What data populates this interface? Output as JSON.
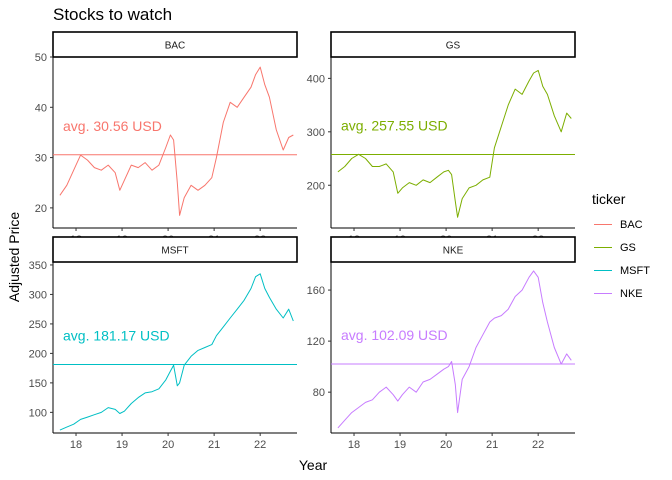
{
  "title": "Stocks to watch",
  "xlabel": "Year",
  "ylabel": "Adjusted Price",
  "legend": {
    "title": "ticker",
    "items": [
      {
        "label": "BAC",
        "color": "#F8766D"
      },
      {
        "label": "GS",
        "color": "#7CAE00"
      },
      {
        "label": "MSFT",
        "color": "#00BFC4"
      },
      {
        "label": "NKE",
        "color": "#C77CFF"
      }
    ]
  },
  "chart_data": {
    "type": "line",
    "facet_by": "ticker",
    "x_ticks": [
      "18",
      "19",
      "20",
      "21",
      "22"
    ],
    "grid": false,
    "legend_position": "right",
    "panels": [
      {
        "name": "BAC",
        "color": "#F8766D",
        "ylim": [
          16,
          50
        ],
        "yticks": [
          20,
          30,
          40,
          50
        ],
        "average": 30.56,
        "avg_label": "avg. 30.56 USD",
        "x": [
          17.65,
          17.8,
          18.0,
          18.1,
          18.25,
          18.4,
          18.55,
          18.7,
          18.85,
          18.95,
          19.05,
          19.2,
          19.35,
          19.5,
          19.65,
          19.8,
          19.95,
          20.05,
          20.12,
          20.2,
          20.25,
          20.35,
          20.5,
          20.65,
          20.8,
          20.95,
          21.05,
          21.2,
          21.35,
          21.5,
          21.65,
          21.8,
          21.9,
          22.0,
          22.1,
          22.2,
          22.35,
          22.5,
          22.62,
          22.72
        ],
        "y": [
          22.5,
          24.5,
          28.5,
          30.5,
          29.5,
          28.0,
          27.5,
          28.5,
          27.0,
          23.5,
          25.5,
          28.5,
          28.0,
          29.0,
          27.5,
          28.5,
          32.0,
          34.5,
          33.5,
          25.0,
          18.5,
          22.0,
          24.5,
          23.5,
          24.5,
          26.0,
          30.0,
          37.0,
          41.0,
          40.0,
          42.0,
          44.0,
          46.5,
          48.0,
          44.5,
          42.0,
          35.5,
          31.5,
          34.0,
          34.5
        ]
      },
      {
        "name": "GS",
        "color": "#7CAE00",
        "ylim": [
          120,
          440
        ],
        "yticks": [
          200,
          300,
          400
        ],
        "average": 257.55,
        "avg_label": "avg. 257.55 USD",
        "x": [
          17.65,
          17.8,
          17.95,
          18.1,
          18.25,
          18.4,
          18.55,
          18.7,
          18.85,
          18.95,
          19.05,
          19.2,
          19.35,
          19.5,
          19.65,
          19.8,
          19.95,
          20.05,
          20.12,
          20.2,
          20.25,
          20.35,
          20.5,
          20.65,
          20.8,
          20.95,
          21.05,
          21.2,
          21.35,
          21.5,
          21.65,
          21.8,
          21.9,
          22.0,
          22.1,
          22.2,
          22.35,
          22.5,
          22.62,
          22.72
        ],
        "y": [
          225,
          235,
          250,
          258,
          250,
          235,
          235,
          240,
          225,
          185,
          195,
          205,
          200,
          210,
          205,
          215,
          225,
          228,
          220,
          170,
          140,
          175,
          195,
          200,
          210,
          215,
          270,
          310,
          350,
          380,
          370,
          395,
          410,
          415,
          385,
          370,
          330,
          300,
          335,
          325
        ]
      },
      {
        "name": "MSFT",
        "color": "#00BFC4",
        "ylim": [
          65,
          355
        ],
        "yticks": [
          100,
          150,
          200,
          250,
          300,
          350
        ],
        "average": 181.17,
        "avg_label": "avg. 181.17 USD",
        "x": [
          17.65,
          17.8,
          17.95,
          18.1,
          18.25,
          18.4,
          18.55,
          18.7,
          18.85,
          18.95,
          19.05,
          19.2,
          19.35,
          19.5,
          19.65,
          19.8,
          19.95,
          20.05,
          20.12,
          20.2,
          20.25,
          20.35,
          20.5,
          20.65,
          20.8,
          20.95,
          21.05,
          21.2,
          21.35,
          21.5,
          21.65,
          21.8,
          21.9,
          22.0,
          22.1,
          22.2,
          22.35,
          22.5,
          22.62,
          22.72
        ],
        "y": [
          70,
          75,
          80,
          88,
          92,
          96,
          100,
          108,
          105,
          98,
          102,
          115,
          125,
          133,
          135,
          140,
          155,
          170,
          180,
          145,
          150,
          180,
          195,
          205,
          210,
          215,
          230,
          245,
          260,
          275,
          290,
          310,
          330,
          335,
          310,
          295,
          275,
          260,
          275,
          255
        ]
      },
      {
        "name": "NKE",
        "color": "#C77CFF",
        "ylim": [
          48,
          182
        ],
        "yticks": [
          80,
          120,
          160
        ],
        "average": 102.09,
        "avg_label": "avg. 102.09 USD",
        "x": [
          17.65,
          17.8,
          17.95,
          18.1,
          18.25,
          18.4,
          18.55,
          18.7,
          18.85,
          18.95,
          19.05,
          19.2,
          19.35,
          19.5,
          19.65,
          19.8,
          19.95,
          20.05,
          20.12,
          20.2,
          20.25,
          20.35,
          20.5,
          20.65,
          20.8,
          20.95,
          21.05,
          21.2,
          21.35,
          21.5,
          21.65,
          21.8,
          21.9,
          22.0,
          22.1,
          22.2,
          22.35,
          22.5,
          22.62,
          22.72
        ],
        "y": [
          52,
          58,
          64,
          68,
          72,
          74,
          80,
          84,
          78,
          73,
          78,
          84,
          80,
          88,
          90,
          94,
          98,
          100,
          104,
          86,
          64,
          90,
          100,
          115,
          125,
          135,
          138,
          140,
          145,
          155,
          160,
          170,
          175,
          170,
          150,
          135,
          115,
          102,
          110,
          105
        ]
      }
    ]
  }
}
